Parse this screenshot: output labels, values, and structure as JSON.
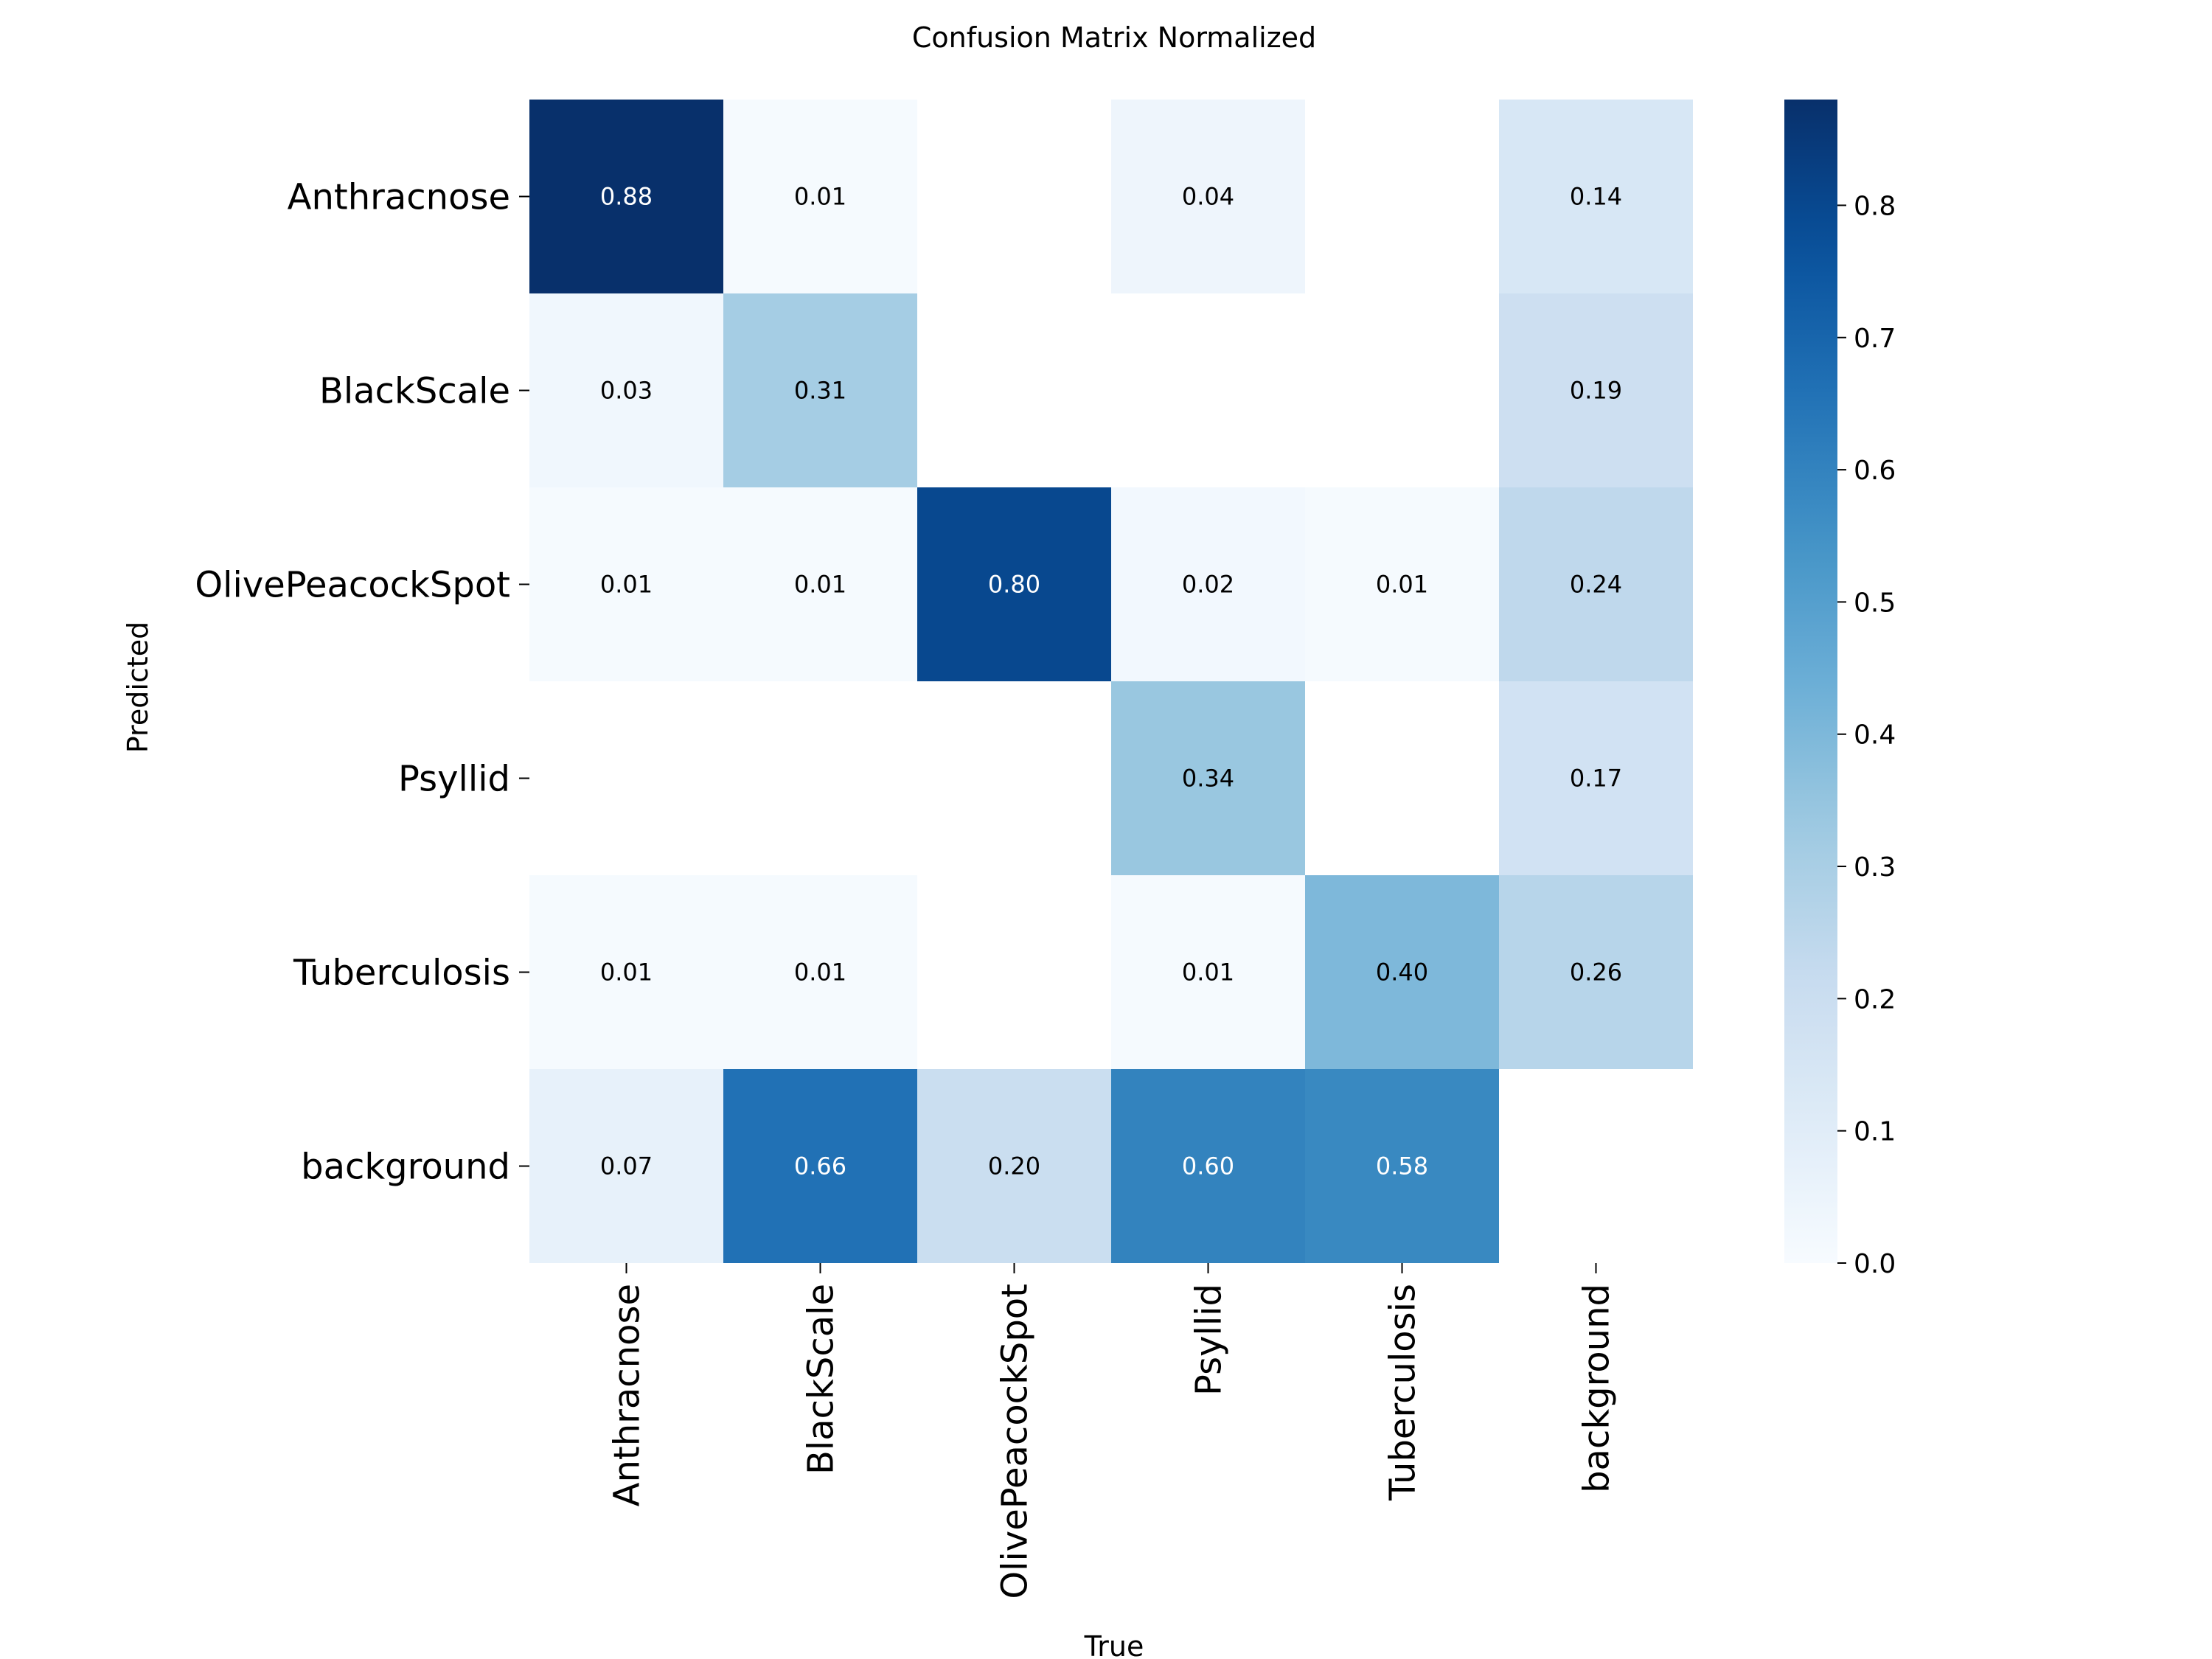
{
  "chart_data": {
    "type": "heatmap",
    "title": "Confusion Matrix Normalized",
    "xlabel": "True",
    "ylabel": "Predicted",
    "x_categories": [
      "Anthracnose",
      "BlackScale",
      "OlivePeacockSpot",
      "Psyllid",
      "Tuberculosis",
      "background"
    ],
    "y_categories": [
      "Anthracnose",
      "BlackScale",
      "OlivePeacockSpot",
      "Psyllid",
      "Tuberculosis",
      "background"
    ],
    "values": [
      [
        0.88,
        0.01,
        null,
        0.04,
        null,
        0.14
      ],
      [
        0.03,
        0.31,
        null,
        null,
        null,
        0.19
      ],
      [
        0.01,
        0.01,
        0.8,
        0.02,
        0.01,
        0.24
      ],
      [
        null,
        null,
        null,
        0.34,
        null,
        0.17
      ],
      [
        0.01,
        0.01,
        null,
        0.01,
        0.4,
        0.26
      ],
      [
        0.07,
        0.66,
        0.2,
        0.6,
        0.58,
        null
      ]
    ],
    "value_labels": [
      [
        "0.88",
        "0.01",
        "",
        "0.04",
        "",
        "0.14"
      ],
      [
        "0.03",
        "0.31",
        "",
        "",
        "",
        "0.19"
      ],
      [
        "0.01",
        "0.01",
        "0.80",
        "0.02",
        "0.01",
        "0.24"
      ],
      [
        "",
        "",
        "",
        "0.34",
        "",
        "0.17"
      ],
      [
        "0.01",
        "0.01",
        "",
        "0.01",
        "0.40",
        "0.26"
      ],
      [
        "0.07",
        "0.66",
        "0.20",
        "0.60",
        "0.58",
        ""
      ]
    ],
    "colormap": "Blues",
    "colorbar": {
      "range": [
        0.0,
        0.88
      ],
      "ticks": [
        0.0,
        0.1,
        0.2,
        0.3,
        0.4,
        0.5,
        0.6,
        0.7,
        0.8
      ],
      "tick_labels": [
        "0.0",
        "0.1",
        "0.2",
        "0.3",
        "0.4",
        "0.5",
        "0.6",
        "0.7",
        "0.8"
      ]
    }
  }
}
